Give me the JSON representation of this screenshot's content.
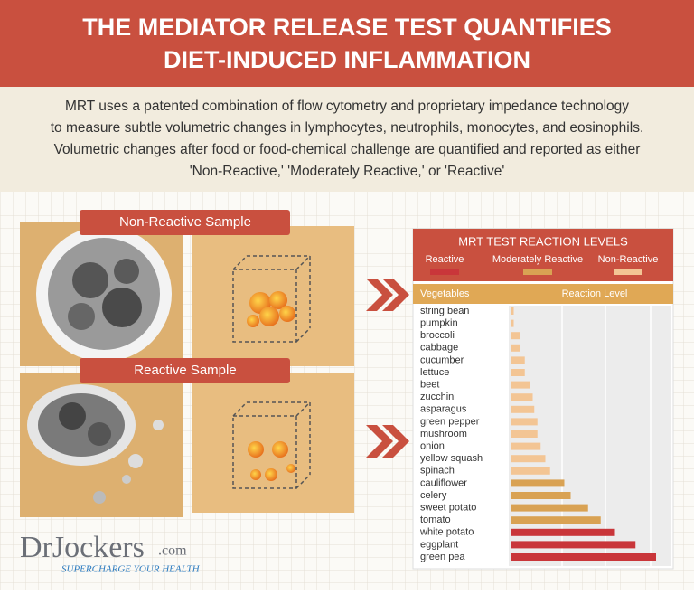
{
  "header": {
    "title_lines": [
      "THE MEDIATOR RELEASE TEST QUANTIFIES",
      "DIET-INDUCED INFLAMMATION"
    ]
  },
  "intro": [
    "MRT uses a patented combination of flow cytometry and proprietary impedance technology",
    "to measure subtle volumetric changes in lymphocytes, neutrophils, monocytes, and eosinophils.",
    "Volumetric changes after food or food-chemical challenge are quantified and reported as either",
    "'Non-Reactive,' 'Moderately Reactive,' or 'Reactive'"
  ],
  "samples": [
    "Non-Reactive Sample",
    "Reactive Sample"
  ],
  "logo": {
    "brand": "DrJockers",
    "suffix": ".com",
    "tagline": "SUPERCHARGE YOUR HEALTH"
  },
  "chart_data": {
    "type": "bar",
    "orientation": "horizontal",
    "title": "MRT TEST REACTION LEVELS",
    "legend": [
      {
        "name": "Reactive",
        "color": "#c9363a"
      },
      {
        "name": "Moderately Reactive",
        "color": "#d9a253"
      },
      {
        "name": "Non-Reactive",
        "color": "#f3c594"
      }
    ],
    "x_label": "Reaction Level",
    "y_label": "Vegetables",
    "categories": [
      "string bean",
      "pumpkin",
      "broccoli",
      "cabbage",
      "cucumber",
      "lettuce",
      "beet",
      "zucchini",
      "asparagus",
      "green pepper",
      "mushroom",
      "onion",
      "yellow squash",
      "spinach",
      "cauliflower",
      "celery",
      "sweet potato",
      "tomato",
      "white potato",
      "eggplant",
      "green pea"
    ],
    "values": [
      2,
      2,
      6,
      6,
      9,
      9,
      12,
      14,
      15,
      17,
      17,
      19,
      22,
      25,
      34,
      38,
      49,
      57,
      66,
      79,
      92
    ],
    "colors": [
      "#f3c594",
      "#f3c594",
      "#f3c594",
      "#f3c594",
      "#f3c594",
      "#f3c594",
      "#f3c594",
      "#f3c594",
      "#f3c594",
      "#f3c594",
      "#f3c594",
      "#f3c594",
      "#f3c594",
      "#f3c594",
      "#d9a253",
      "#d9a253",
      "#d9a253",
      "#d9a253",
      "#c9363a",
      "#c9363a",
      "#c9363a"
    ],
    "xlim": [
      0,
      100
    ]
  }
}
